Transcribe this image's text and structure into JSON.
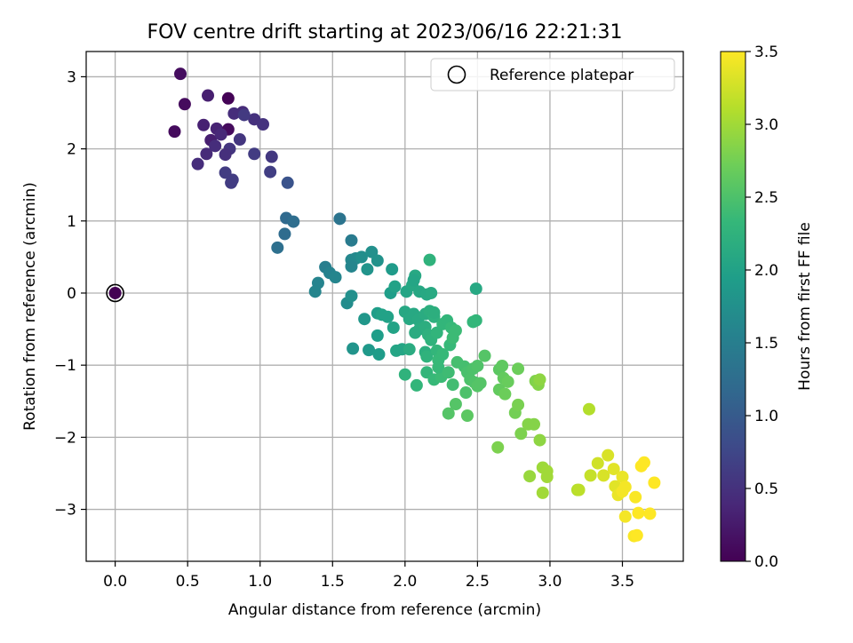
{
  "chart_data": {
    "type": "scatter",
    "title": "FOV centre drift starting at 2023/06/16 22:21:31",
    "xlabel": "Angular distance from reference (arcmin)",
    "ylabel": "Rotation from reference (arcmin)",
    "xlim": [
      -0.2,
      3.92
    ],
    "ylim": [
      -3.72,
      3.35
    ],
    "xticks": [
      0.0,
      0.5,
      1.0,
      1.5,
      2.0,
      2.5,
      3.0,
      3.5
    ],
    "xtick_labels": [
      "0.0",
      "0.5",
      "1.0",
      "1.5",
      "2.0",
      "2.5",
      "3.0",
      "3.5"
    ],
    "yticks": [
      3,
      2,
      1,
      0,
      -1,
      -2,
      -3
    ],
    "ytick_labels": [
      "3",
      "2",
      "1",
      "0",
      "−1",
      "−2",
      "−3"
    ],
    "grid": true,
    "legend": {
      "placement": "top-right",
      "entries": [
        "Reference platepar"
      ]
    },
    "reference_point": {
      "x": 0.0,
      "y": 0.0,
      "label": "Reference platepar"
    },
    "colorbar": {
      "label": "Hours from first FF file",
      "colormap": "viridis",
      "range": [
        0.0,
        3.5
      ],
      "ticks": [
        0.0,
        0.5,
        1.0,
        1.5,
        2.0,
        2.5,
        3.0,
        3.5
      ],
      "tick_labels": [
        "0.0",
        "0.5",
        "1.0",
        "1.5",
        "2.0",
        "2.5",
        "3.0",
        "3.5"
      ]
    },
    "colors": {
      "viridis_stops": [
        "#440154",
        "#482878",
        "#3e4989",
        "#31688e",
        "#26828e",
        "#1f9e89",
        "#35b779",
        "#6ece58",
        "#b5de2b",
        "#fde725"
      ]
    },
    "points": [
      [
        0.0,
        0.0,
        0.0
      ],
      [
        0.45,
        3.04,
        0.12
      ],
      [
        0.48,
        2.62,
        0.1
      ],
      [
        0.41,
        2.24,
        0.1
      ],
      [
        0.78,
        2.7,
        0.02
      ],
      [
        0.64,
        2.74,
        0.3
      ],
      [
        0.61,
        2.33,
        0.32
      ],
      [
        0.66,
        2.12,
        0.3
      ],
      [
        0.7,
        2.28,
        0.35
      ],
      [
        0.78,
        2.27,
        0.1
      ],
      [
        0.73,
        2.2,
        0.4
      ],
      [
        0.88,
        2.51,
        0.42
      ],
      [
        0.82,
        2.49,
        0.45
      ],
      [
        0.96,
        2.41,
        0.5
      ],
      [
        1.02,
        2.34,
        0.52
      ],
      [
        0.89,
        2.47,
        0.6
      ],
      [
        0.69,
        2.04,
        0.45
      ],
      [
        0.79,
        2.0,
        0.55
      ],
      [
        0.76,
        1.92,
        0.48
      ],
      [
        0.63,
        1.93,
        0.42
      ],
      [
        0.57,
        1.79,
        0.45
      ],
      [
        0.86,
        2.13,
        0.55
      ],
      [
        0.96,
        1.93,
        0.62
      ],
      [
        1.08,
        1.89,
        0.58
      ],
      [
        0.76,
        1.67,
        0.62
      ],
      [
        0.81,
        1.57,
        0.62
      ],
      [
        0.8,
        1.53,
        0.62
      ],
      [
        1.07,
        1.68,
        0.65
      ],
      [
        1.19,
        1.53,
        0.9
      ],
      [
        1.18,
        1.04,
        1.2
      ],
      [
        1.23,
        0.99,
        1.25
      ],
      [
        1.17,
        0.82,
        1.22
      ],
      [
        1.12,
        0.63,
        1.28
      ],
      [
        1.55,
        1.03,
        1.35
      ],
      [
        1.63,
        0.73,
        1.45
      ],
      [
        1.45,
        0.36,
        1.5
      ],
      [
        1.48,
        0.28,
        1.55
      ],
      [
        1.52,
        0.22,
        1.6
      ],
      [
        1.4,
        0.14,
        1.58
      ],
      [
        1.38,
        0.02,
        1.6
      ],
      [
        1.63,
        0.46,
        1.62
      ],
      [
        1.66,
        0.48,
        1.65
      ],
      [
        1.7,
        0.5,
        1.72
      ],
      [
        1.77,
        0.57,
        1.75
      ],
      [
        1.81,
        0.45,
        1.78
      ],
      [
        1.63,
        0.37,
        1.6
      ],
      [
        1.74,
        0.33,
        1.8
      ],
      [
        1.91,
        0.33,
        1.9
      ],
      [
        1.6,
        -0.14,
        1.7
      ],
      [
        1.63,
        -0.04,
        1.75
      ],
      [
        1.72,
        -0.36,
        1.85
      ],
      [
        1.64,
        -0.77,
        1.8
      ],
      [
        1.75,
        -0.79,
        1.88
      ],
      [
        1.81,
        -0.59,
        1.95
      ],
      [
        1.82,
        -0.85,
        1.92
      ],
      [
        1.81,
        -0.28,
        1.95
      ],
      [
        1.84,
        -0.3,
        2.0
      ],
      [
        1.88,
        -0.33,
        2.0
      ],
      [
        1.92,
        -0.48,
        2.02
      ],
      [
        1.94,
        -0.8,
        2.05
      ],
      [
        1.98,
        -0.78,
        2.05
      ],
      [
        1.9,
        0.0,
        1.95
      ],
      [
        1.93,
        0.09,
        2.0
      ],
      [
        2.01,
        0.02,
        2.05
      ],
      [
        2.05,
        0.11,
        2.08
      ],
      [
        2.07,
        0.24,
        2.1
      ],
      [
        2.06,
        0.18,
        2.05
      ],
      [
        2.17,
        0.46,
        2.25
      ],
      [
        2.1,
        0.02,
        2.08
      ],
      [
        2.15,
        -0.02,
        2.1
      ],
      [
        2.18,
        0.0,
        2.12
      ],
      [
        2.0,
        -0.26,
        2.08
      ],
      [
        2.03,
        -0.36,
        2.1
      ],
      [
        2.06,
        -0.29,
        2.1
      ],
      [
        2.09,
        -0.37,
        2.12
      ],
      [
        2.1,
        -0.5,
        2.15
      ],
      [
        2.07,
        -0.55,
        2.15
      ],
      [
        2.14,
        -0.29,
        2.15
      ],
      [
        2.17,
        -0.25,
        2.2
      ],
      [
        2.2,
        -0.33,
        2.22
      ],
      [
        2.2,
        -0.27,
        2.2
      ],
      [
        2.14,
        -0.47,
        2.18
      ],
      [
        2.16,
        -0.58,
        2.22
      ],
      [
        2.18,
        -0.65,
        2.25
      ],
      [
        2.22,
        -0.55,
        2.28
      ],
      [
        2.26,
        -0.43,
        2.3
      ],
      [
        2.29,
        -0.38,
        2.3
      ],
      [
        2.32,
        -0.48,
        2.35
      ],
      [
        2.35,
        -0.52,
        2.38
      ],
      [
        2.03,
        -0.78,
        2.15
      ],
      [
        2.14,
        -0.82,
        2.2
      ],
      [
        2.15,
        -0.88,
        2.25
      ],
      [
        2.22,
        -0.8,
        2.3
      ],
      [
        2.23,
        -0.93,
        2.35
      ],
      [
        2.26,
        -0.85,
        2.35
      ],
      [
        2.31,
        -0.72,
        2.35
      ],
      [
        2.33,
        -0.62,
        2.38
      ],
      [
        2.49,
        0.06,
        2.1
      ],
      [
        2.49,
        -0.38,
        2.3
      ],
      [
        2.47,
        -0.4,
        2.32
      ],
      [
        2.0,
        -1.13,
        2.25
      ],
      [
        2.08,
        -1.28,
        2.3
      ],
      [
        2.15,
        -1.1,
        2.3
      ],
      [
        2.2,
        -1.2,
        2.35
      ],
      [
        2.25,
        -1.16,
        2.38
      ],
      [
        2.23,
        -1.03,
        2.35
      ],
      [
        2.3,
        -1.1,
        2.4
      ],
      [
        2.33,
        -1.27,
        2.42
      ],
      [
        2.36,
        -0.96,
        2.45
      ],
      [
        2.41,
        -1.02,
        2.45
      ],
      [
        2.43,
        -1.1,
        2.48
      ],
      [
        2.45,
        -1.2,
        2.5
      ],
      [
        2.47,
        -1.05,
        2.5
      ],
      [
        2.5,
        -1.01,
        2.52
      ],
      [
        2.48,
        -1.24,
        2.52
      ],
      [
        2.5,
        -1.29,
        2.55
      ],
      [
        2.52,
        -1.25,
        2.55
      ],
      [
        2.55,
        -0.87,
        2.55
      ],
      [
        2.42,
        -1.38,
        2.5
      ],
      [
        2.35,
        -1.54,
        2.55
      ],
      [
        2.3,
        -1.67,
        2.55
      ],
      [
        2.43,
        -1.7,
        2.6
      ],
      [
        2.65,
        -1.06,
        2.6
      ],
      [
        2.67,
        -1.01,
        2.62
      ],
      [
        2.68,
        -1.18,
        2.65
      ],
      [
        2.71,
        -1.23,
        2.68
      ],
      [
        2.65,
        -1.34,
        2.65
      ],
      [
        2.69,
        -1.4,
        2.7
      ],
      [
        2.78,
        -1.05,
        2.7
      ],
      [
        2.76,
        -1.66,
        2.75
      ],
      [
        2.78,
        -1.55,
        2.78
      ],
      [
        2.64,
        -2.14,
        2.8
      ],
      [
        2.8,
        -1.95,
        2.8
      ],
      [
        2.85,
        -1.82,
        2.85
      ],
      [
        2.89,
        -1.82,
        2.85
      ],
      [
        2.9,
        -1.22,
        2.82
      ],
      [
        2.92,
        -1.27,
        2.85
      ],
      [
        2.93,
        -1.2,
        2.9
      ],
      [
        2.93,
        -2.04,
        2.9
      ],
      [
        2.86,
        -2.54,
        2.95
      ],
      [
        2.95,
        -2.42,
        2.98
      ],
      [
        2.98,
        -2.47,
        3.0
      ],
      [
        2.98,
        -2.55,
        3.0
      ],
      [
        2.95,
        -2.77,
        3.0
      ],
      [
        3.19,
        -2.73,
        3.1
      ],
      [
        3.2,
        -2.73,
        3.15
      ],
      [
        3.27,
        -1.61,
        3.1
      ],
      [
        3.28,
        -2.53,
        3.2
      ],
      [
        3.33,
        -2.36,
        3.25
      ],
      [
        3.37,
        -2.53,
        3.3
      ],
      [
        3.4,
        -2.25,
        3.3
      ],
      [
        3.44,
        -2.44,
        3.35
      ],
      [
        3.45,
        -2.68,
        3.35
      ],
      [
        3.47,
        -2.8,
        3.4
      ],
      [
        3.5,
        -2.55,
        3.4
      ],
      [
        3.5,
        -2.75,
        3.45
      ],
      [
        3.52,
        -2.69,
        3.45
      ],
      [
        3.52,
        -3.1,
        3.45
      ],
      [
        3.58,
        -3.37,
        3.48
      ],
      [
        3.59,
        -2.83,
        3.48
      ],
      [
        3.61,
        -3.05,
        3.5
      ],
      [
        3.63,
        -2.4,
        3.5
      ],
      [
        3.65,
        -2.35,
        3.5
      ],
      [
        3.69,
        -3.06,
        3.5
      ],
      [
        3.72,
        -2.63,
        3.5
      ],
      [
        3.6,
        -3.36,
        3.5
      ]
    ]
  }
}
